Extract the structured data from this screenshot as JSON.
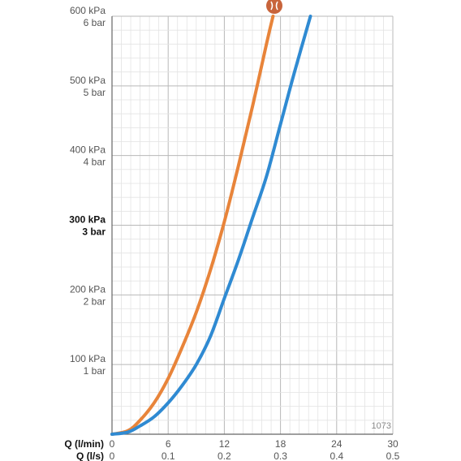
{
  "chart_data": {
    "type": "line",
    "code_label": "1073",
    "x_axis_primary": {
      "label": "Q (l/min)",
      "ticks": [
        "0",
        "6",
        "12",
        "18",
        "24",
        "30"
      ],
      "range": [
        0,
        30
      ]
    },
    "x_axis_secondary": {
      "label": "Q (l/s)",
      "ticks": [
        "0",
        "0.1",
        "0.2",
        "0.3",
        "0.4",
        "0.5"
      ]
    },
    "y_axis": {
      "range": [
        0,
        600
      ],
      "ticks": [
        {
          "value": 100,
          "kpa": "100 kPa",
          "bar": "1 bar",
          "bold": false
        },
        {
          "value": 200,
          "kpa": "200 kPa",
          "bar": "2 bar",
          "bold": false
        },
        {
          "value": 300,
          "kpa": "300 kPa",
          "bar": "3 bar",
          "bold": true
        },
        {
          "value": 400,
          "kpa": "400 kPa",
          "bar": "4 bar",
          "bold": false
        },
        {
          "value": 500,
          "kpa": "500 kPa",
          "bar": "5 bar",
          "bold": false
        },
        {
          "value": 600,
          "kpa": "600 kPa",
          "bar": "6 bar",
          "bold": false
        }
      ]
    },
    "grid": true,
    "series": [
      {
        "color": "#e8843a",
        "x": [
          0,
          1.7,
          3,
          4.5,
          6,
          7.5,
          9,
          10.5,
          12,
          13.5,
          15,
          16.5,
          17.2
        ],
        "y": [
          0,
          5,
          20,
          45,
          80,
          125,
          175,
          235,
          305,
          385,
          470,
          560,
          600
        ]
      },
      {
        "color": "#2f8ad2",
        "x": [
          0,
          1.7,
          3,
          4.5,
          6,
          7.5,
          9,
          10.5,
          12,
          13.5,
          15,
          16.5,
          18,
          19.5,
          21.2
        ],
        "y": [
          0,
          3,
          12,
          25,
          45,
          70,
          100,
          140,
          195,
          250,
          310,
          370,
          445,
          520,
          600
        ]
      }
    ],
    "marker_icon": "nozzle-icon",
    "marker_color": "#c8643b"
  }
}
